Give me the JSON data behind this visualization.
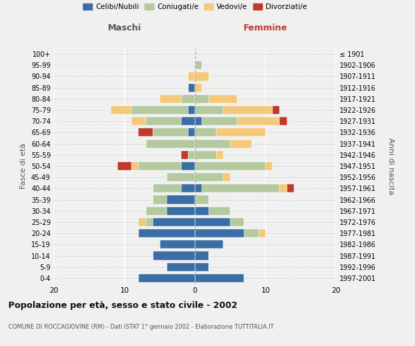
{
  "age_groups": [
    "0-4",
    "5-9",
    "10-14",
    "15-19",
    "20-24",
    "25-29",
    "30-34",
    "35-39",
    "40-44",
    "45-49",
    "50-54",
    "55-59",
    "60-64",
    "65-69",
    "70-74",
    "75-79",
    "80-84",
    "85-89",
    "90-94",
    "95-99",
    "100+"
  ],
  "birth_years": [
    "1997-2001",
    "1992-1996",
    "1987-1991",
    "1982-1986",
    "1977-1981",
    "1972-1976",
    "1967-1971",
    "1962-1966",
    "1957-1961",
    "1952-1956",
    "1947-1951",
    "1942-1946",
    "1937-1941",
    "1932-1936",
    "1927-1931",
    "1922-1926",
    "1917-1921",
    "1912-1916",
    "1907-1911",
    "1902-1906",
    "≤ 1901"
  ],
  "maschi_celibe": [
    8,
    4,
    6,
    5,
    8,
    6,
    4,
    4,
    2,
    0,
    2,
    0,
    0,
    1,
    2,
    1,
    0,
    1,
    0,
    0,
    0
  ],
  "maschi_coniugato": [
    0,
    0,
    0,
    0,
    0,
    1,
    3,
    2,
    4,
    4,
    6,
    1,
    7,
    5,
    5,
    8,
    2,
    0,
    0,
    0,
    0
  ],
  "maschi_vedovo": [
    0,
    0,
    0,
    0,
    0,
    1,
    0,
    0,
    0,
    0,
    1,
    0,
    0,
    0,
    2,
    3,
    3,
    0,
    1,
    0,
    0
  ],
  "maschi_divorziato": [
    0,
    0,
    0,
    0,
    0,
    0,
    0,
    0,
    0,
    0,
    2,
    1,
    0,
    2,
    0,
    0,
    0,
    0,
    0,
    0,
    0
  ],
  "femmine_celibe": [
    7,
    2,
    2,
    4,
    7,
    5,
    2,
    0,
    1,
    0,
    0,
    0,
    0,
    0,
    1,
    0,
    0,
    0,
    0,
    0,
    0
  ],
  "femmine_coniugato": [
    0,
    0,
    0,
    0,
    2,
    2,
    3,
    2,
    11,
    4,
    10,
    3,
    5,
    3,
    5,
    4,
    2,
    0,
    0,
    1,
    0
  ],
  "femmine_vedovo": [
    0,
    0,
    0,
    0,
    1,
    0,
    0,
    0,
    1,
    1,
    1,
    1,
    3,
    7,
    6,
    7,
    4,
    1,
    2,
    0,
    0
  ],
  "femmine_divorziato": [
    0,
    0,
    0,
    0,
    0,
    0,
    0,
    0,
    1,
    0,
    0,
    0,
    0,
    0,
    1,
    1,
    0,
    0,
    0,
    0,
    0
  ],
  "color_celibe": "#3a6ea5",
  "color_coniugato": "#b5c9a0",
  "color_vedovo": "#f5c97a",
  "color_divorziato": "#c0392b",
  "title": "Popolazione per età, sesso e stato civile - 2002",
  "subtitle": "COMUNE DI ROCCAGIOVINE (RM) - Dati ISTAT 1° gennaio 2002 - Elaborazione TUTTITALIA.IT",
  "xlabel_left": "Maschi",
  "xlabel_right": "Femmine",
  "ylabel_left": "Fasce di età",
  "ylabel_right": "Anni di nascita",
  "xlim": 20,
  "legend_labels": [
    "Celibi/Nubili",
    "Coniugati/e",
    "Vedovi/e",
    "Divorziati/e"
  ],
  "background_color": "#f0f0f0"
}
